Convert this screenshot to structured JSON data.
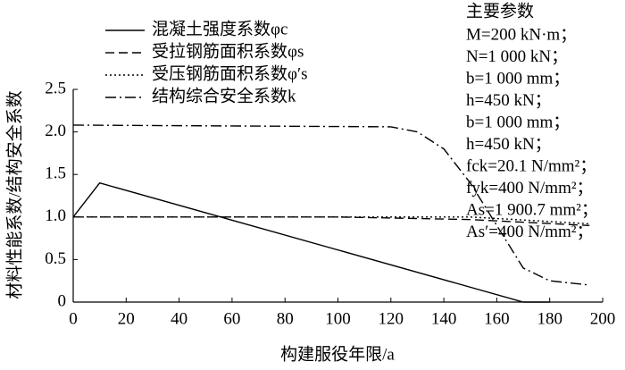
{
  "chart_data": {
    "type": "line",
    "xlabel": "构建服役年限/a",
    "ylabel": "材料性能系数/结构安全系数",
    "xlim": [
      0,
      200
    ],
    "xticks": [
      0,
      20,
      40,
      60,
      80,
      100,
      120,
      140,
      160,
      180,
      200
    ],
    "ylim": [
      0,
      2.5
    ],
    "yticks": [
      0,
      0.5,
      {
        "value": 1,
        "label": "1.0"
      },
      1.5,
      {
        "value": 2,
        "label": "2.0"
      },
      2.5
    ],
    "grid": false,
    "legend": "upper left",
    "series": [
      {
        "name": "混凝土强度系数φc",
        "color": "#000000",
        "dash": "solid",
        "x": [
          0,
          10,
          170,
          180
        ],
        "values": [
          1.0,
          1.4,
          0.0,
          0.0
        ]
      },
      {
        "name": "受拉钢筋面积系数φs",
        "color": "#000000",
        "dash": "dashed",
        "x": [
          0,
          100,
          150,
          195
        ],
        "values": [
          1.0,
          1.0,
          0.97,
          0.9
        ]
      },
      {
        "name": "受压钢筋面积系数φ′s",
        "color": "#000000",
        "dash": "dotted",
        "x": [
          0,
          150,
          195
        ],
        "values": [
          1.0,
          1.0,
          0.92
        ]
      },
      {
        "name": "结构综合安全系数k",
        "color": "#000000",
        "dash": "dashdot",
        "x": [
          0,
          120,
          130,
          140,
          150,
          160,
          170,
          180,
          195
        ],
        "values": [
          2.08,
          2.06,
          2.0,
          1.8,
          1.4,
          0.9,
          0.4,
          0.25,
          0.2
        ]
      }
    ],
    "annotation_title": "主要参数",
    "annotations": [
      "M=200 kN·m；",
      "N=1 000 kN；",
      "b=1 000 mm；",
      "h=450 kN；",
      "b=1 000 mm；",
      "h=450 kN；",
      "fck=20.1 N/mm²；",
      "fyk=400 N/mm²；",
      "As=1 900.7 mm²；",
      "As′=400 N/mm²；"
    ]
  }
}
